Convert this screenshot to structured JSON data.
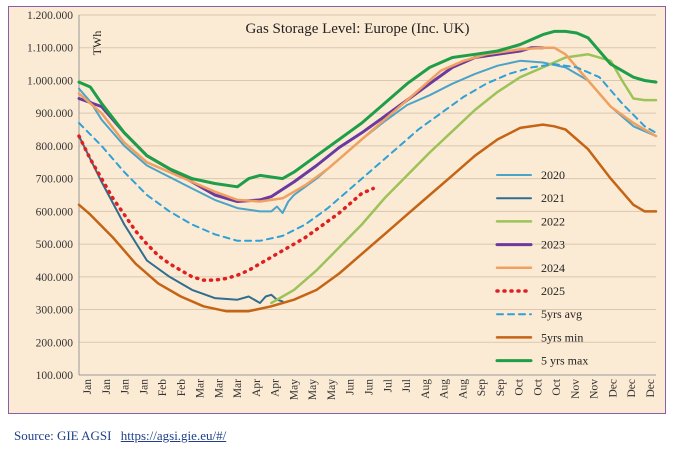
{
  "chart_data": {
    "type": "line",
    "title": "Gas Storage Level: Europe (Inc. UK)",
    "ylabel": "TWh",
    "xlabel": "",
    "ylim": [
      100,
      1200
    ],
    "yticks": [
      "100.000",
      "200.000",
      "300.000",
      "400.000",
      "500.000",
      "600.000",
      "700.000",
      "800.000",
      "900.000",
      "1.000.000",
      "1.100.000",
      "1.200.000"
    ],
    "ytick_values": [
      100,
      200,
      300,
      400,
      500,
      600,
      700,
      800,
      900,
      1000,
      1100,
      1200
    ],
    "xticks": [
      "Jan",
      "Jan",
      "Jan",
      "Jan",
      "Feb",
      "Feb",
      "Mar",
      "Mar",
      "Mar",
      "Apr",
      "Apr",
      "May",
      "May",
      "May",
      "Jun",
      "Jun",
      "Jul",
      "Jul",
      "Aug",
      "Aug",
      "Aug",
      "Sep",
      "Sep",
      "Oct",
      "Oct",
      "Oct",
      "Nov",
      "Nov",
      "Dec",
      "Dec",
      "Dec"
    ],
    "x_range": [
      1,
      52
    ],
    "grid": true,
    "legend_position": "right",
    "series": [
      {
        "name": "2020",
        "color": "#4aa3c8",
        "width": 2,
        "dash": "",
        "x": [
          1,
          2,
          3,
          5,
          7,
          9,
          11,
          13,
          15,
          17,
          18,
          18.5,
          19,
          19.5,
          20,
          22,
          24,
          26,
          28,
          30,
          32,
          34,
          36,
          38,
          40,
          42,
          44,
          46,
          48,
          50,
          52
        ],
        "y": [
          975,
          935,
          880,
          800,
          740,
          705,
          670,
          635,
          610,
          600,
          600,
          615,
          595,
          630,
          650,
          700,
          760,
          820,
          875,
          925,
          955,
          990,
          1020,
          1045,
          1060,
          1055,
          1040,
          1000,
          920,
          860,
          830
        ]
      },
      {
        "name": "2021",
        "color": "#2f6e8e",
        "width": 2,
        "dash": "",
        "x": [
          1,
          3,
          5,
          7,
          9,
          11,
          13,
          15,
          16,
          17,
          17.5,
          18,
          18.5,
          19
        ],
        "y": [
          830,
          690,
          560,
          450,
          400,
          360,
          335,
          330,
          340,
          320,
          340,
          345,
          330,
          325
        ]
      },
      {
        "name": "2022",
        "color": "#9cc35a",
        "width": 2.5,
        "dash": "",
        "x": [
          18,
          20,
          22,
          24,
          26,
          28,
          30,
          32,
          34,
          36,
          38,
          40,
          42,
          44,
          46,
          48,
          49,
          50,
          51,
          52
        ],
        "y": [
          320,
          360,
          420,
          490,
          560,
          640,
          710,
          780,
          845,
          910,
          965,
          1010,
          1040,
          1070,
          1080,
          1060,
          1000,
          945,
          940,
          940
        ]
      },
      {
        "name": "2023",
        "color": "#6a3aa0",
        "width": 3,
        "dash": "",
        "x": [
          1,
          3,
          5,
          7,
          9,
          11,
          13,
          15,
          17,
          18,
          20,
          22,
          24,
          26,
          28,
          30,
          32,
          34,
          36,
          38,
          40,
          41,
          42
        ],
        "y": [
          945,
          920,
          840,
          770,
          730,
          690,
          650,
          630,
          635,
          645,
          690,
          740,
          795,
          840,
          890,
          940,
          990,
          1040,
          1070,
          1080,
          1090,
          1100,
          1100
        ]
      },
      {
        "name": "2024",
        "color": "#f0a060",
        "width": 2.5,
        "dash": "",
        "x": [
          1,
          3,
          5,
          7,
          9,
          11,
          13,
          15,
          17,
          19,
          21,
          23,
          25,
          27,
          29,
          31,
          33,
          35,
          37,
          39,
          40,
          42,
          43,
          44,
          46,
          48,
          50,
          52
        ],
        "y": [
          960,
          900,
          810,
          750,
          720,
          690,
          660,
          635,
          630,
          640,
          680,
          730,
          790,
          850,
          910,
          970,
          1030,
          1060,
          1080,
          1090,
          1095,
          1100,
          1100,
          1080,
          1000,
          920,
          870,
          830
        ]
      },
      {
        "name": "2025",
        "color": "#e02020",
        "width": 3.5,
        "dash": "1 6",
        "x": [
          1,
          2,
          3,
          4,
          5,
          6,
          7,
          8,
          9,
          10,
          11,
          12,
          13,
          14,
          15,
          16,
          17,
          18,
          19,
          20,
          21,
          22,
          23,
          24,
          25,
          26,
          27
        ],
        "y": [
          830,
          760,
          700,
          640,
          590,
          540,
          500,
          465,
          440,
          420,
          400,
          390,
          390,
          395,
          405,
          420,
          440,
          460,
          480,
          500,
          520,
          545,
          570,
          595,
          625,
          655,
          670
        ]
      },
      {
        "name": "5yrs avg",
        "color": "#2ea1d8",
        "width": 2,
        "dash": "6 5",
        "x": [
          1,
          3,
          5,
          7,
          9,
          11,
          13,
          15,
          17,
          19,
          21,
          23,
          25,
          27,
          29,
          31,
          33,
          35,
          37,
          39,
          41,
          43,
          45,
          47,
          49,
          51,
          52
        ],
        "y": [
          870,
          800,
          720,
          650,
          600,
          560,
          530,
          510,
          510,
          525,
          560,
          610,
          670,
          730,
          790,
          850,
          900,
          950,
          990,
          1020,
          1040,
          1050,
          1040,
          1010,
          930,
          860,
          840
        ]
      },
      {
        "name": "5yrs min",
        "color": "#c56414",
        "width": 2.5,
        "dash": "",
        "x": [
          1,
          2,
          4,
          6,
          8,
          10,
          12,
          14,
          16,
          18,
          20,
          22,
          24,
          26,
          28,
          30,
          32,
          34,
          36,
          38,
          40,
          42,
          43,
          44,
          46,
          48,
          50,
          51,
          52
        ],
        "y": [
          620,
          590,
          520,
          440,
          380,
          340,
          310,
          295,
          295,
          310,
          330,
          360,
          410,
          470,
          530,
          590,
          650,
          710,
          770,
          820,
          855,
          865,
          860,
          850,
          790,
          700,
          620,
          600,
          600
        ]
      },
      {
        "name": "5 yrs max",
        "color": "#1e9e48",
        "width": 3,
        "dash": "",
        "x": [
          1,
          2,
          3,
          5,
          7,
          9,
          11,
          13,
          15,
          16,
          17,
          18,
          19,
          20,
          22,
          24,
          26,
          28,
          30,
          32,
          34,
          36,
          38,
          40,
          42,
          43,
          44,
          45,
          46,
          48,
          50,
          51,
          52
        ],
        "y": [
          995,
          980,
          930,
          840,
          770,
          730,
          700,
          685,
          675,
          700,
          710,
          705,
          700,
          720,
          770,
          820,
          870,
          930,
          990,
          1040,
          1070,
          1080,
          1090,
          1110,
          1140,
          1150,
          1150,
          1145,
          1130,
          1050,
          1010,
          1000,
          995
        ]
      }
    ]
  },
  "source": {
    "label": "Source: GIE AGSI",
    "link_text": "https://agsi.gie.eu/#/"
  }
}
